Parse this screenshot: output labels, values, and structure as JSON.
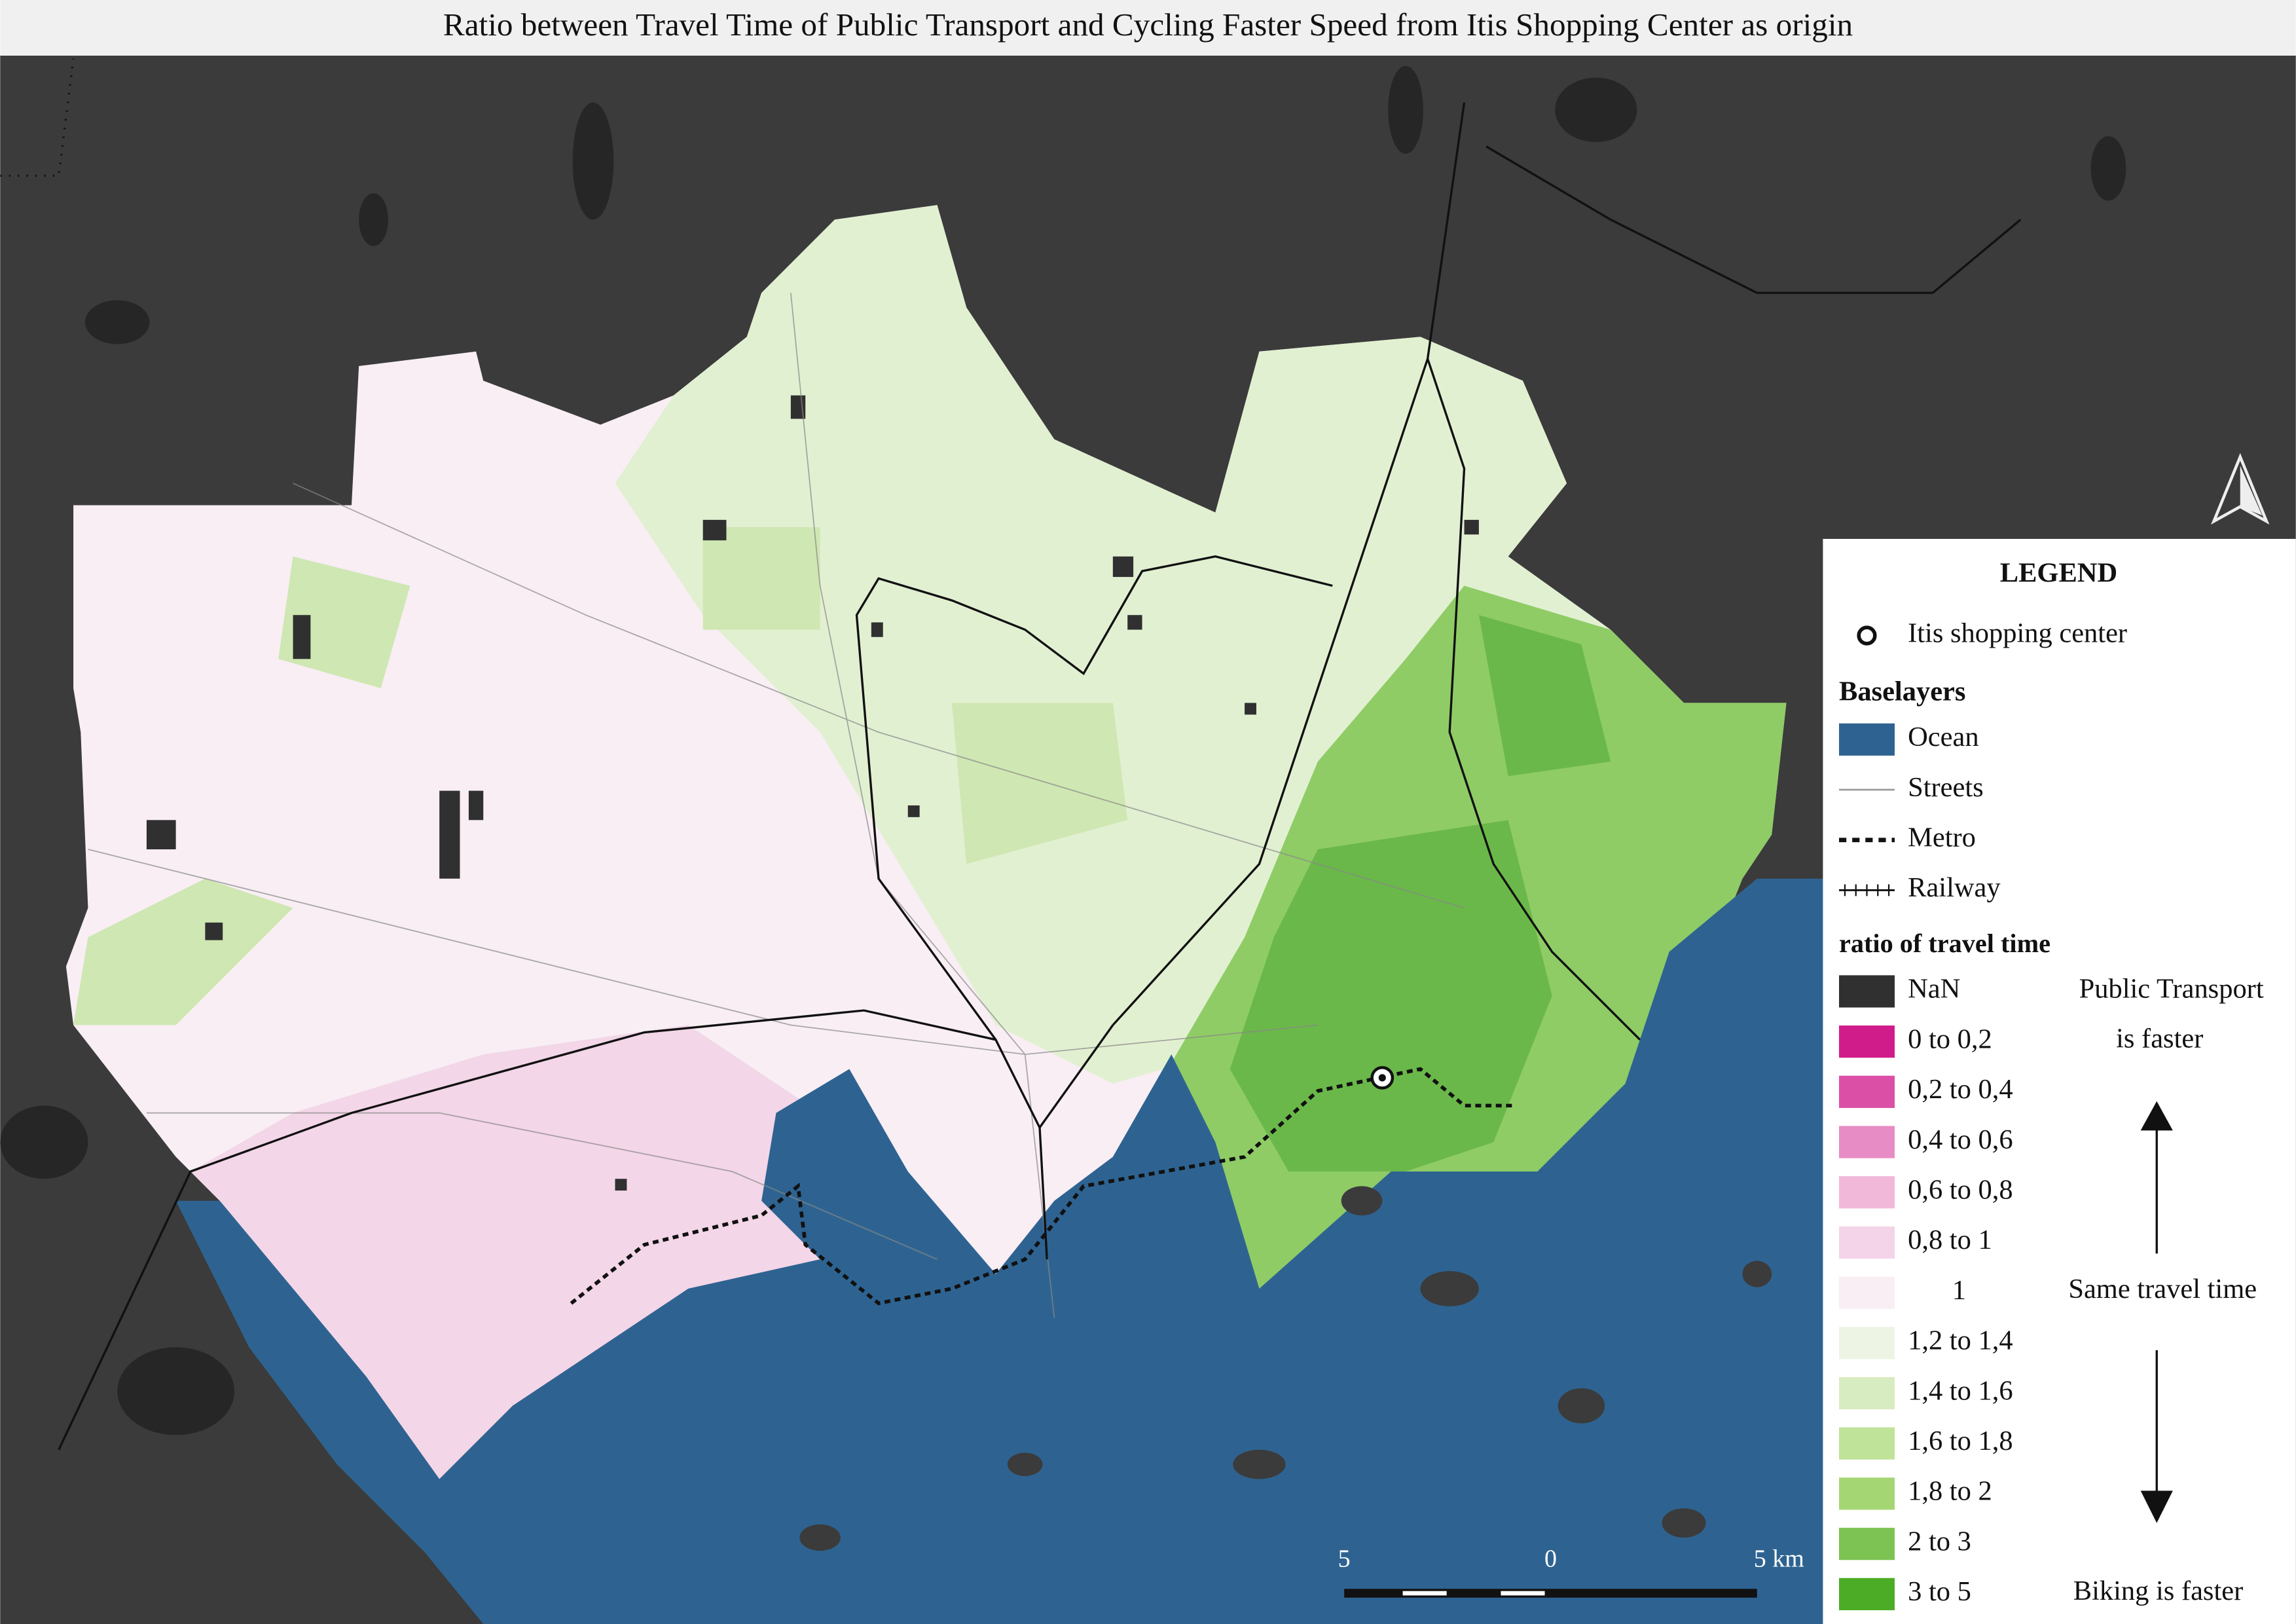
{
  "title": "Ratio between Travel Time of Public Transport and Cycling Faster Speed from Itis Shopping Center as origin",
  "legend": {
    "title": "LEGEND",
    "origin": "Itis shopping center",
    "baselayers_heading": "Baselayers",
    "baselayers": [
      {
        "label": "Ocean",
        "color": "#2e6391"
      },
      {
        "label": "Streets",
        "color": "#9a9a9a"
      },
      {
        "label": "Metro",
        "color": "#111111"
      },
      {
        "label": "Railway",
        "color": "#111111"
      }
    ],
    "ratio_heading": "ratio of travel time",
    "classes": [
      {
        "label": "NaN",
        "color": "#303030"
      },
      {
        "label": "0 to 0,2",
        "color": "#d01c8b"
      },
      {
        "label": "0,2 to 0,4",
        "color": "#dc4fa6"
      },
      {
        "label": "0,4 to 0,6",
        "color": "#e78cc4"
      },
      {
        "label": "0,6 to 0,8",
        "color": "#f1b8da"
      },
      {
        "label": "0,8 to 1",
        "color": "#f4d4e8"
      },
      {
        "label": "1",
        "color": "#f8eef4"
      },
      {
        "label": "1,2 to 1,4",
        "color": "#eef4e4"
      },
      {
        "label": "1,4 to 1,6",
        "color": "#d8ecc1"
      },
      {
        "label": "1,6 to 1,8",
        "color": "#c0e39a"
      },
      {
        "label": "1,8 to 2",
        "color": "#a5d674"
      },
      {
        "label": "2 to 3",
        "color": "#7dc353"
      },
      {
        "label": "3 to 5",
        "color": "#4dac26"
      }
    ],
    "annotations": [
      "Public Transport",
      "is faster",
      "Same travel time",
      "Biking is faster"
    ]
  },
  "scale_bar": {
    "labels": [
      "5",
      "0",
      "5 km"
    ]
  }
}
